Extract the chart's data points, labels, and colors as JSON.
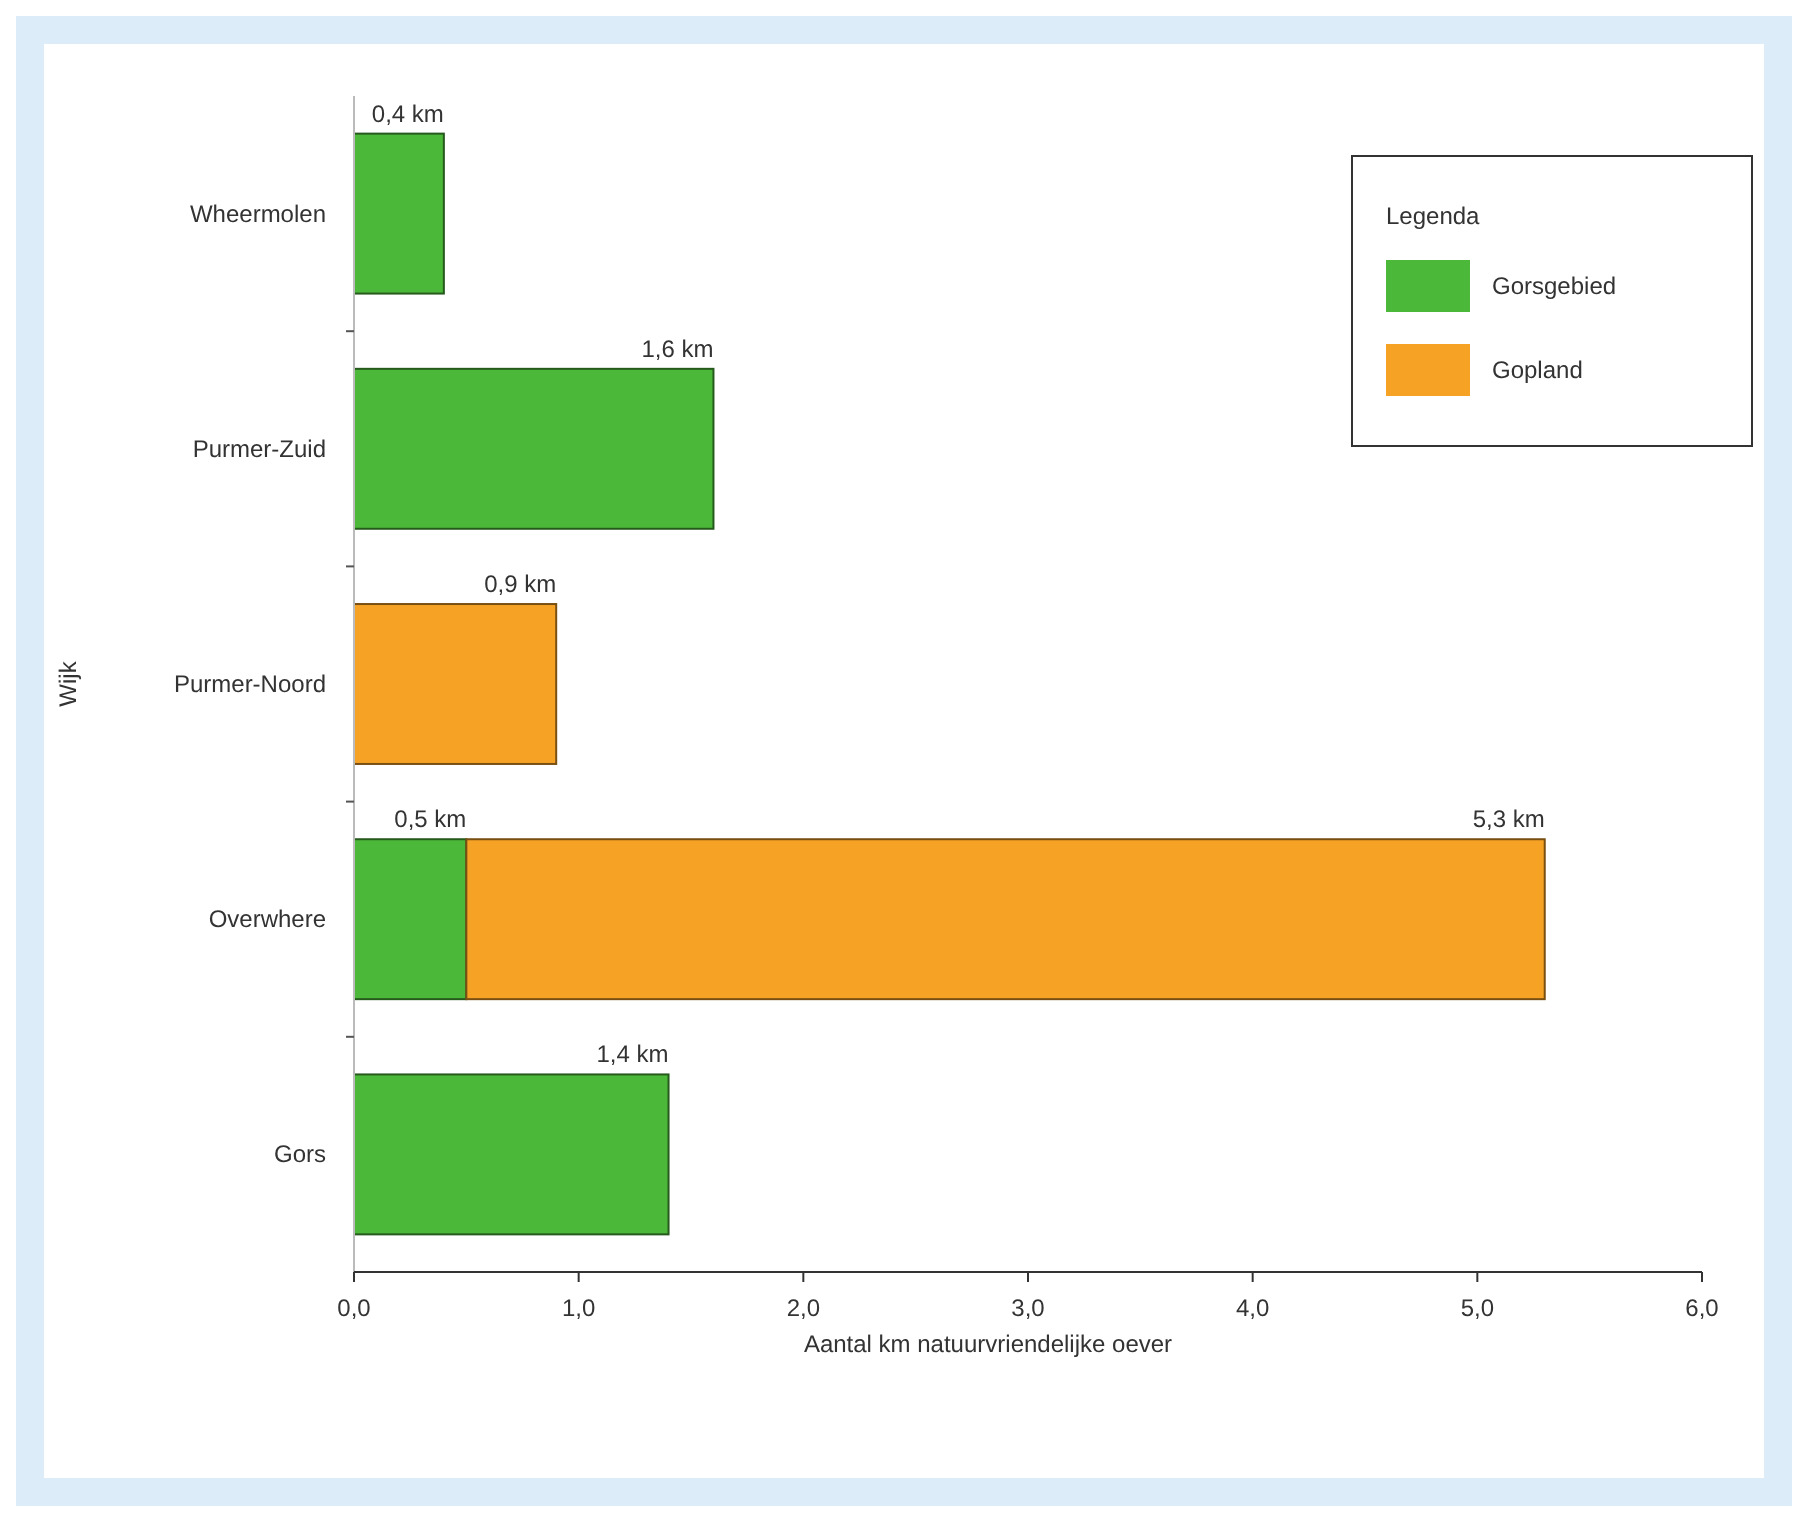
{
  "chart_data": {
    "type": "bar",
    "orientation": "horizontal",
    "stacked": true,
    "xlabel": "Aantal km natuurvriendelijke oever",
    "ylabel": "Wijk",
    "legend_title": "Legenda",
    "categories": [
      "Wheermolen",
      "Purmer-Zuid",
      "Purmer-Noord",
      "Overwhere",
      "Gors"
    ],
    "series": [
      {
        "name": "Gorsgebied",
        "color": "#4cb83a",
        "values": [
          0.4,
          1.6,
          null,
          0.5,
          1.4
        ],
        "value_labels": [
          null,
          null,
          null,
          "0,5 km",
          null
        ]
      },
      {
        "name": "Gopland",
        "color": "#f6a224",
        "values": [
          null,
          null,
          0.9,
          4.8,
          null
        ]
      }
    ],
    "totals": [
      "0,4 km",
      "1,6 km",
      "0,9 km",
      "5,3 km",
      "1,4 km"
    ],
    "xlim": [
      0,
      6
    ],
    "xticks": [
      {
        "value": 0,
        "label": "0,0"
      },
      {
        "value": 1,
        "label": "1,0"
      },
      {
        "value": 2,
        "label": "2,0"
      },
      {
        "value": 3,
        "label": "3,0"
      },
      {
        "value": 4,
        "label": "4,0"
      },
      {
        "value": 5,
        "label": "5,0"
      },
      {
        "value": 6,
        "label": "6,0"
      }
    ],
    "legend": "top right",
    "grid": false
  }
}
